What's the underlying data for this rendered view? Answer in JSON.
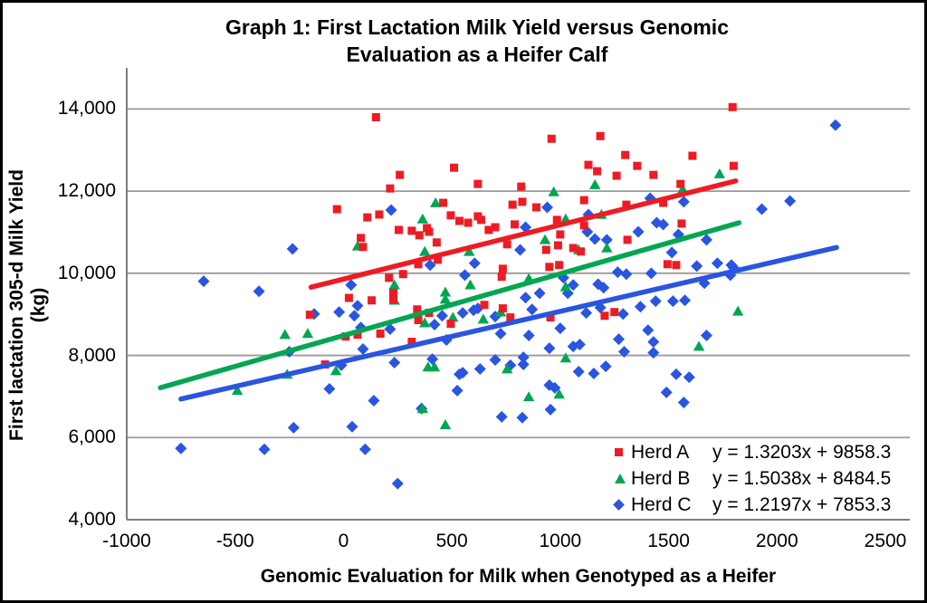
{
  "title": {
    "line1": "Graph 1: First Lactation Milk Yield versus Genomic",
    "line2": "Evaluation as a Heifer Calf"
  },
  "axes": {
    "x": {
      "label": "Genomic Evaluation for Milk when Genotyped as a Heifer",
      "ticks": [
        {
          "value": -1000,
          "label": "-1000"
        },
        {
          "value": -500,
          "label": "-500"
        },
        {
          "value": 0,
          "label": "0"
        },
        {
          "value": 500,
          "label": "500"
        },
        {
          "value": 1000,
          "label": "1000"
        },
        {
          "value": 1500,
          "label": "1500"
        },
        {
          "value": 2000,
          "label": "2000"
        },
        {
          "value": 2500,
          "label": "2500"
        }
      ]
    },
    "y": {
      "label": "First lactation 305-d Milk Yield (kg)",
      "ticks": [
        {
          "value": 4000,
          "label": "4,000"
        },
        {
          "value": 6000,
          "label": "6,000"
        },
        {
          "value": 8000,
          "label": "8,000"
        },
        {
          "value": 10000,
          "label": "10,000"
        },
        {
          "value": 12000,
          "label": "12,000"
        },
        {
          "value": 14000,
          "label": "14,000"
        }
      ]
    }
  },
  "legend": {
    "entries": [
      {
        "label": "Herd A",
        "equation": "y = 1.3203x + 9858.3",
        "marker": "square",
        "color": "#ED1C24"
      },
      {
        "label": "Herd B",
        "equation": "y = 1.5038x + 8484.5",
        "marker": "triangle",
        "color": "#00A651"
      },
      {
        "label": "Herd C",
        "equation": "y = 1.2197x + 7853.3",
        "marker": "diamond",
        "color": "#2A55E0"
      }
    ]
  },
  "colors": {
    "herd_a": "#ED1C24",
    "herd_b": "#00A651",
    "herd_c": "#2A55E0",
    "gridline": "#9A9A9A",
    "axis_line": "#7F7F7F"
  },
  "chart_data": {
    "type": "scatter",
    "title": "Graph 1: First Lactation Milk Yield versus Genomic Evaluation as a Heifer Calf",
    "xlabel": "Genomic Evaluation for Milk when Genotyped as a Heifer",
    "ylabel": "First lactation 305-d Milk Yield (kg)",
    "xlim": [
      -1000,
      2500
    ],
    "ylim": [
      4000,
      15000
    ],
    "grid": true,
    "legend_position": "bottom-right-inside",
    "series": [
      {
        "name": "Herd A",
        "marker": "square",
        "color": "#ED1C24",
        "trendline": {
          "equation": "y = 1.3203x + 9858.3",
          "slope": 1.3203,
          "intercept": 9858.3,
          "x_start": -150,
          "x_end": 1810
        },
        "points": [
          [
            150,
            13800
          ],
          [
            -30,
            11560
          ],
          [
            110,
            11360
          ],
          [
            165,
            11430
          ],
          [
            80,
            10860
          ],
          [
            90,
            10640
          ],
          [
            25,
            9400
          ],
          [
            230,
            9520
          ],
          [
            130,
            9340
          ],
          [
            -155,
            8990
          ],
          [
            10,
            8460
          ],
          [
            65,
            8505
          ],
          [
            -85,
            7780
          ],
          [
            960,
            13275
          ],
          [
            1185,
            13340
          ],
          [
            1300,
            12880
          ],
          [
            510,
            12570
          ],
          [
            260,
            12395
          ],
          [
            1130,
            12640
          ],
          [
            1170,
            12485
          ],
          [
            1260,
            12375
          ],
          [
            215,
            12065
          ],
          [
            620,
            12175
          ],
          [
            820,
            12110
          ],
          [
            460,
            11715
          ],
          [
            315,
            11035
          ],
          [
            495,
            11410
          ],
          [
            535,
            11275
          ],
          [
            575,
            11230
          ],
          [
            620,
            11385
          ],
          [
            635,
            11300
          ],
          [
            670,
            11055
          ],
          [
            700,
            11120
          ],
          [
            780,
            11670
          ],
          [
            890,
            11605
          ],
          [
            825,
            11740
          ],
          [
            1110,
            11780
          ],
          [
            985,
            11300
          ],
          [
            1110,
            11165
          ],
          [
            255,
            11055
          ],
          [
            350,
            10925
          ],
          [
            385,
            11100
          ],
          [
            395,
            11010
          ],
          [
            430,
            10750
          ],
          [
            790,
            11190
          ],
          [
            935,
            10570
          ],
          [
            950,
            10155
          ],
          [
            1000,
            10945
          ],
          [
            1060,
            10615
          ],
          [
            1095,
            10530
          ],
          [
            995,
            10200
          ],
          [
            990,
            10680
          ],
          [
            345,
            10220
          ],
          [
            275,
            9980
          ],
          [
            435,
            10330
          ],
          [
            735,
            10110
          ],
          [
            755,
            10705
          ],
          [
            210,
            9890
          ],
          [
            730,
            9915
          ],
          [
            1310,
            10815
          ],
          [
            1305,
            11670
          ],
          [
            1795,
            14045
          ],
          [
            1610,
            12860
          ],
          [
            1355,
            12615
          ],
          [
            1430,
            12395
          ],
          [
            1800,
            12615
          ],
          [
            1555,
            12175
          ],
          [
            1475,
            11715
          ],
          [
            1560,
            11210
          ],
          [
            1495,
            10220
          ],
          [
            1535,
            10200
          ],
          [
            230,
            9365
          ],
          [
            340,
            9120
          ],
          [
            395,
            9035
          ],
          [
            345,
            8860
          ],
          [
            495,
            8770
          ],
          [
            650,
            9230
          ],
          [
            735,
            9145
          ],
          [
            770,
            8925
          ],
          [
            955,
            8925
          ],
          [
            1205,
            8965
          ],
          [
            1250,
            9055
          ],
          [
            315,
            8330
          ],
          [
            170,
            8530
          ]
        ]
      },
      {
        "name": "Herd B",
        "marker": "triangle",
        "color": "#00A651",
        "trendline": {
          "equation": "y = 1.5038x + 8484.5",
          "slope": 1.5038,
          "intercept": 8484.5,
          "x_start": -845,
          "x_end": 1825
        },
        "points": [
          [
            65,
            10660
          ],
          [
            970,
            11980
          ],
          [
            1160,
            12155
          ],
          [
            425,
            11715
          ],
          [
            365,
            11320
          ],
          [
            375,
            10530
          ],
          [
            580,
            10530
          ],
          [
            1025,
            11320
          ],
          [
            930,
            10815
          ],
          [
            1190,
            11430
          ],
          [
            1085,
            10570
          ],
          [
            1215,
            10615
          ],
          [
            235,
            9715
          ],
          [
            235,
            9340
          ],
          [
            585,
            9715
          ],
          [
            470,
            9540
          ],
          [
            1025,
            9670
          ],
          [
            1735,
            12420
          ],
          [
            1565,
            12045
          ],
          [
            -270,
            8505
          ],
          [
            -165,
            8530
          ],
          [
            -35,
            7625
          ],
          [
            -260,
            7540
          ],
          [
            -490,
            7145
          ],
          [
            470,
            9365
          ],
          [
            505,
            8925
          ],
          [
            375,
            8790
          ],
          [
            645,
            8880
          ],
          [
            725,
            9055
          ],
          [
            390,
            7715
          ],
          [
            420,
            7715
          ],
          [
            755,
            7670
          ],
          [
            1025,
            7935
          ],
          [
            855,
            6990
          ],
          [
            995,
            7055
          ],
          [
            365,
            6705
          ],
          [
            470,
            6310
          ],
          [
            1820,
            9075
          ],
          [
            1640,
            8220
          ],
          [
            855,
            9870
          ]
        ]
      },
      {
        "name": "Herd C",
        "marker": "diamond",
        "color": "#2A55E0",
        "trendline": {
          "equation": "y = 1.2197x + 7853.3",
          "slope": 1.2197,
          "intercept": 7853.3,
          "x_start": -750,
          "x_end": 2275
        },
        "points": [
          [
            -645,
            9805
          ],
          [
            -390,
            9560
          ],
          [
            -235,
            10595
          ],
          [
            35,
            9715
          ],
          [
            -135,
            9010
          ],
          [
            -20,
            9055
          ],
          [
            50,
            8965
          ],
          [
            65,
            9210
          ],
          [
            80,
            8680
          ],
          [
            90,
            8155
          ],
          [
            -250,
            8090
          ],
          [
            -10,
            7760
          ],
          [
            -65,
            7185
          ],
          [
            140,
            6900
          ],
          [
            -230,
            6240
          ],
          [
            40,
            6265
          ],
          [
            -750,
            5735
          ],
          [
            -365,
            5715
          ],
          [
            100,
            5715
          ],
          [
            220,
            11540
          ],
          [
            940,
            11605
          ],
          [
            840,
            11120
          ],
          [
            1130,
            11430
          ],
          [
            1125,
            11010
          ],
          [
            1160,
            10835
          ],
          [
            1215,
            10815
          ],
          [
            815,
            10570
          ],
          [
            400,
            10200
          ],
          [
            605,
            10245
          ],
          [
            560,
            9955
          ],
          [
            1015,
            9890
          ],
          [
            1060,
            9715
          ],
          [
            1175,
            9735
          ],
          [
            1200,
            9650
          ],
          [
            1265,
            10025
          ],
          [
            1305,
            9980
          ],
          [
            905,
            9515
          ],
          [
            1035,
            9515
          ],
          [
            1360,
            11010
          ],
          [
            2270,
            13605
          ],
          [
            1415,
            11825
          ],
          [
            1570,
            11740
          ],
          [
            1445,
            11230
          ],
          [
            1475,
            11190
          ],
          [
            1545,
            10945
          ],
          [
            1675,
            10815
          ],
          [
            1930,
            11560
          ],
          [
            2060,
            11760
          ],
          [
            1515,
            10505
          ],
          [
            1630,
            10175
          ],
          [
            1725,
            10245
          ],
          [
            1790,
            10200
          ],
          [
            1800,
            10135
          ],
          [
            1785,
            9955
          ],
          [
            1420,
            10000
          ],
          [
            1665,
            9760
          ],
          [
            215,
            8640
          ],
          [
            420,
            8750
          ],
          [
            455,
            8965
          ],
          [
            550,
            9035
          ],
          [
            600,
            9100
          ],
          [
            620,
            9145
          ],
          [
            700,
            8945
          ],
          [
            725,
            8530
          ],
          [
            840,
            9405
          ],
          [
            870,
            9120
          ],
          [
            855,
            8485
          ],
          [
            950,
            8175
          ],
          [
            1000,
            8660
          ],
          [
            1060,
            8220
          ],
          [
            1090,
            8265
          ],
          [
            1120,
            9035
          ],
          [
            1185,
            9165
          ],
          [
            1290,
            9010
          ],
          [
            1270,
            8395
          ],
          [
            1295,
            8090
          ],
          [
            235,
            7825
          ],
          [
            410,
            7910
          ],
          [
            535,
            7540
          ],
          [
            550,
            7580
          ],
          [
            630,
            7670
          ],
          [
            700,
            7890
          ],
          [
            770,
            7760
          ],
          [
            830,
            7955
          ],
          [
            830,
            7780
          ],
          [
            525,
            7145
          ],
          [
            950,
            7275
          ],
          [
            975,
            7210
          ],
          [
            955,
            6680
          ],
          [
            730,
            6505
          ],
          [
            825,
            6485
          ],
          [
            360,
            6705
          ],
          [
            1085,
            7605
          ],
          [
            1155,
            7560
          ],
          [
            1210,
            7735
          ],
          [
            250,
            4880
          ],
          [
            475,
            8375
          ],
          [
            1370,
            9185
          ],
          [
            1440,
            9320
          ],
          [
            1520,
            9320
          ],
          [
            1575,
            9340
          ],
          [
            1405,
            8615
          ],
          [
            1675,
            8485
          ],
          [
            1430,
            8330
          ],
          [
            1430,
            8065
          ],
          [
            1535,
            7540
          ],
          [
            1595,
            7470
          ],
          [
            1490,
            7100
          ],
          [
            1570,
            6855
          ]
        ]
      }
    ]
  }
}
